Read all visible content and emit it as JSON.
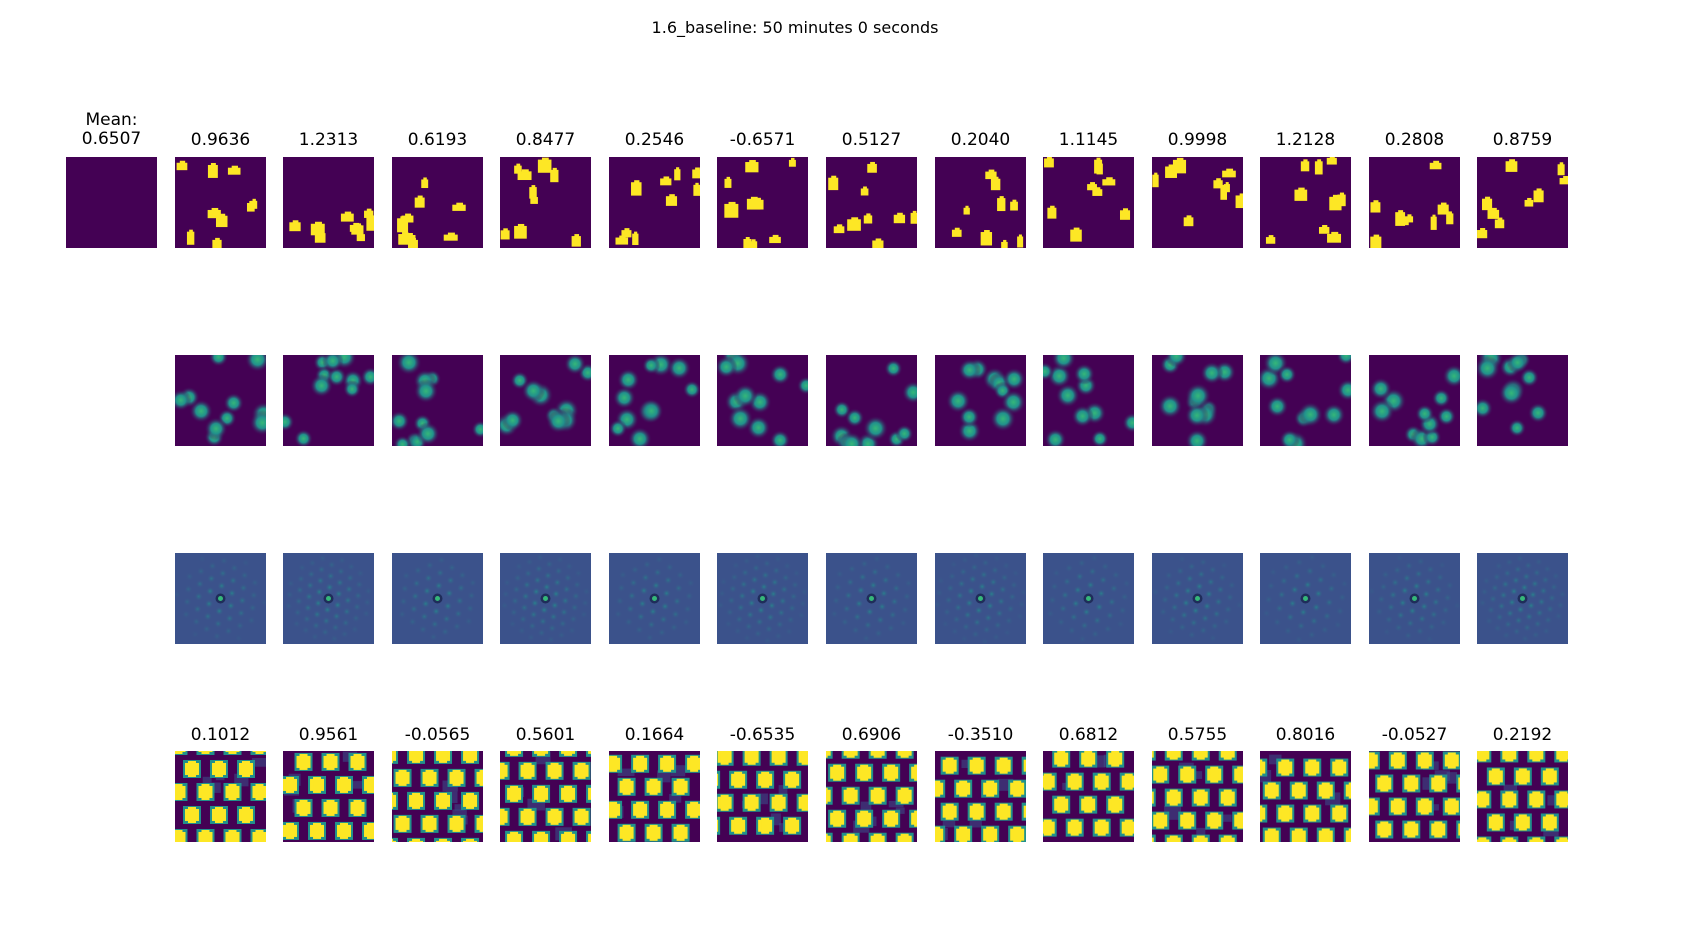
{
  "figure": {
    "title": "1.6_baseline: 50 minutes 0 seconds",
    "mean_label": "Mean:",
    "mean_value": "0.6507",
    "top_scores": [
      "0.9636",
      "1.2313",
      "0.6193",
      "0.8477",
      "0.2546",
      "-0.6571",
      "0.5127",
      "0.2040",
      "1.1145",
      "0.9998",
      "1.2128",
      "0.2808",
      "0.8759"
    ],
    "bottom_scores": [
      "0.1012",
      "0.9561",
      "-0.0565",
      "0.5601",
      "0.1664",
      "-0.6535",
      "0.6906",
      "-0.3510",
      "0.6812",
      "0.5755",
      "0.8016",
      "-0.0527",
      "0.2192"
    ]
  },
  "colors": {
    "viridis_dark": "#440154",
    "viridis_yellow": "#fde725",
    "viridis_green": "#35b779",
    "viridis_teal": "#21918c",
    "autocorr_bg": "#3b528b"
  }
}
